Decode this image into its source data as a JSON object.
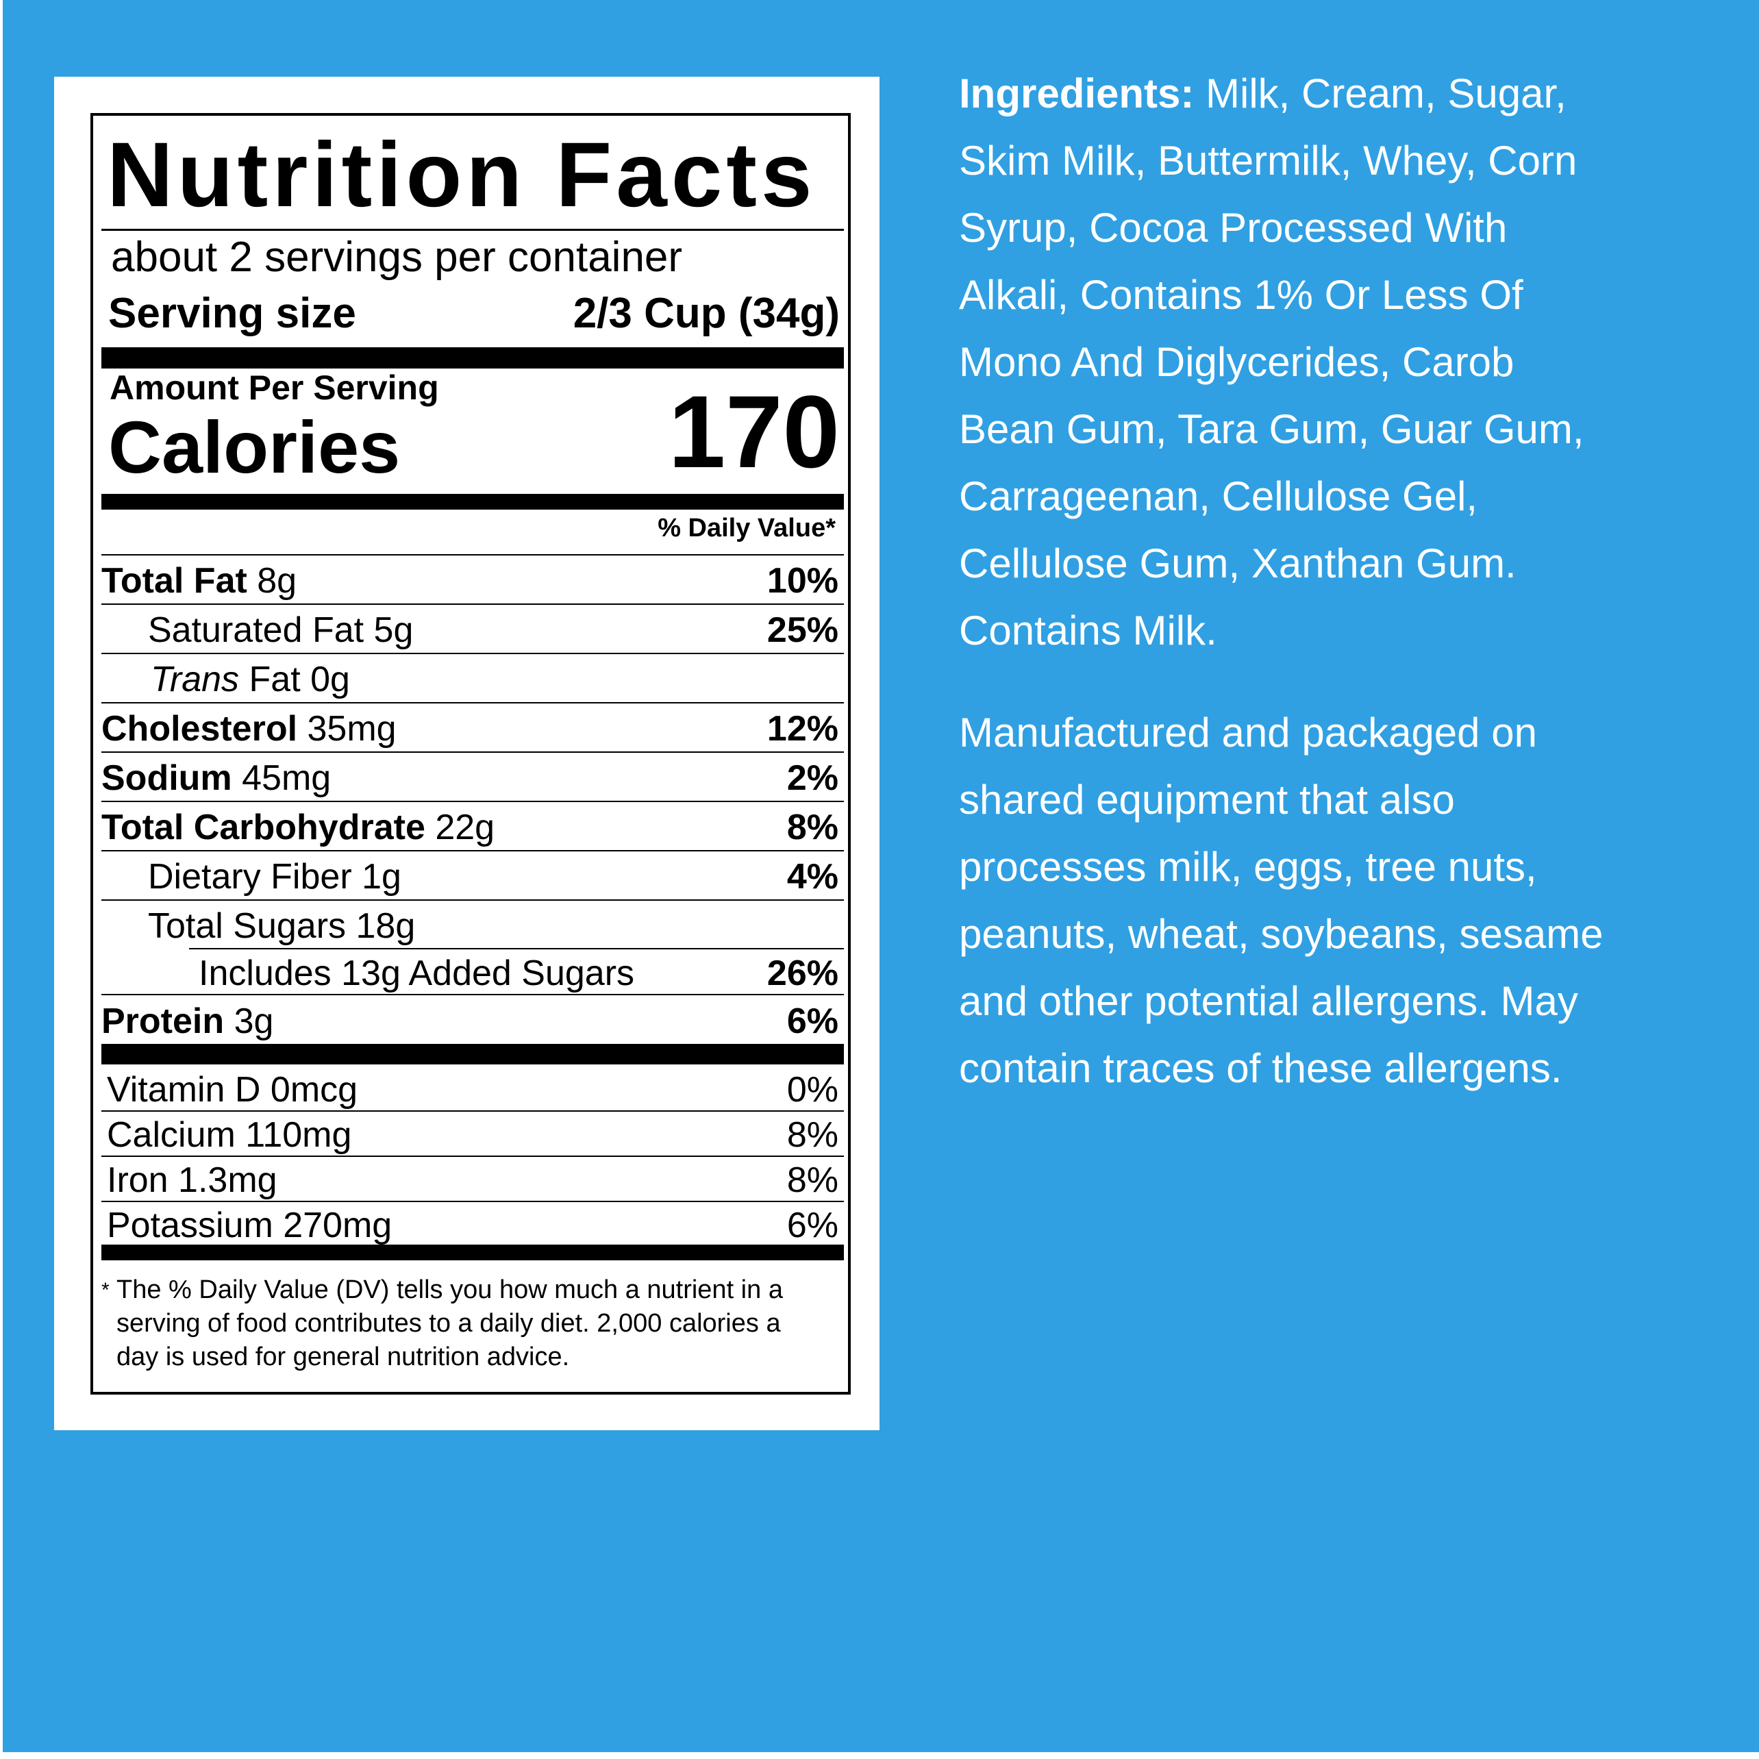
{
  "colors": {
    "background": "#30a0e3",
    "label": "#ffffff",
    "ink": "#000000"
  },
  "label": {
    "title": "Nutrition Facts",
    "servings_per_container": "about 2 servings per container",
    "serving_size_label": "Serving size",
    "serving_size_value": "2/3 Cup (34g)",
    "amount_per_serving": "Amount Per Serving",
    "calories_label": "Calories",
    "calories_value": "170",
    "daily_value_header": "% Daily Value*",
    "nutrients": [
      {
        "name": "Total Fat",
        "amount": "8g",
        "dv": "10%"
      },
      {
        "name": "Saturated Fat",
        "amount": "5g",
        "dv": "25%"
      },
      {
        "prefix": "Trans",
        "name": "Fat",
        "amount": "0g",
        "dv": ""
      },
      {
        "name": "Cholesterol",
        "amount": "35mg",
        "dv": "12%"
      },
      {
        "name": "Sodium",
        "amount": "45mg",
        "dv": "2%"
      },
      {
        "name": "Total Carbohydrate",
        "amount": "22g",
        "dv": "8%"
      },
      {
        "name": "Dietary Fiber",
        "amount": "1g",
        "dv": "4%"
      },
      {
        "name": "Total Sugars",
        "amount": "18g",
        "dv": ""
      },
      {
        "name": "Includes 13g Added Sugars",
        "amount": "",
        "dv": "26%"
      },
      {
        "name": "Protein",
        "amount": "3g",
        "dv": "6%"
      }
    ],
    "vitamins": [
      {
        "text": "Vitamin D 0mcg",
        "dv": "0%"
      },
      {
        "text": "Calcium 110mg",
        "dv": "8%"
      },
      {
        "text": "Iron 1.3mg",
        "dv": "8%"
      },
      {
        "text": "Potassium 270mg",
        "dv": "6%"
      }
    ],
    "footnote_star": "*",
    "footnote_lines": [
      "The % Daily Value (DV) tells you how much a nutrient in a",
      "serving of food contributes to a daily diet. 2,000 calories a",
      "day is used for general nutrition advice."
    ]
  },
  "ingredients": {
    "label": "Ingredients:",
    "lines": [
      " Milk, Cream, Sugar,",
      "Skim Milk, Buttermilk, Whey, Corn",
      "Syrup, Cocoa Processed With",
      "Alkali, Contains 1% Or Less Of",
      "Mono And Diglycerides, Carob",
      "Bean Gum, Tara Gum, Guar Gum,",
      "Carrageenan, Cellulose Gel,",
      "Cellulose Gum, Xanthan Gum.",
      "Contains Milk."
    ]
  },
  "allergen_notice": {
    "lines": [
      "Manufactured and packaged on",
      "shared equipment that also",
      "processes milk, eggs, tree nuts,",
      "peanuts, wheat, soybeans, sesame",
      "and other potential allergens. May",
      "contain traces of these allergens."
    ]
  }
}
